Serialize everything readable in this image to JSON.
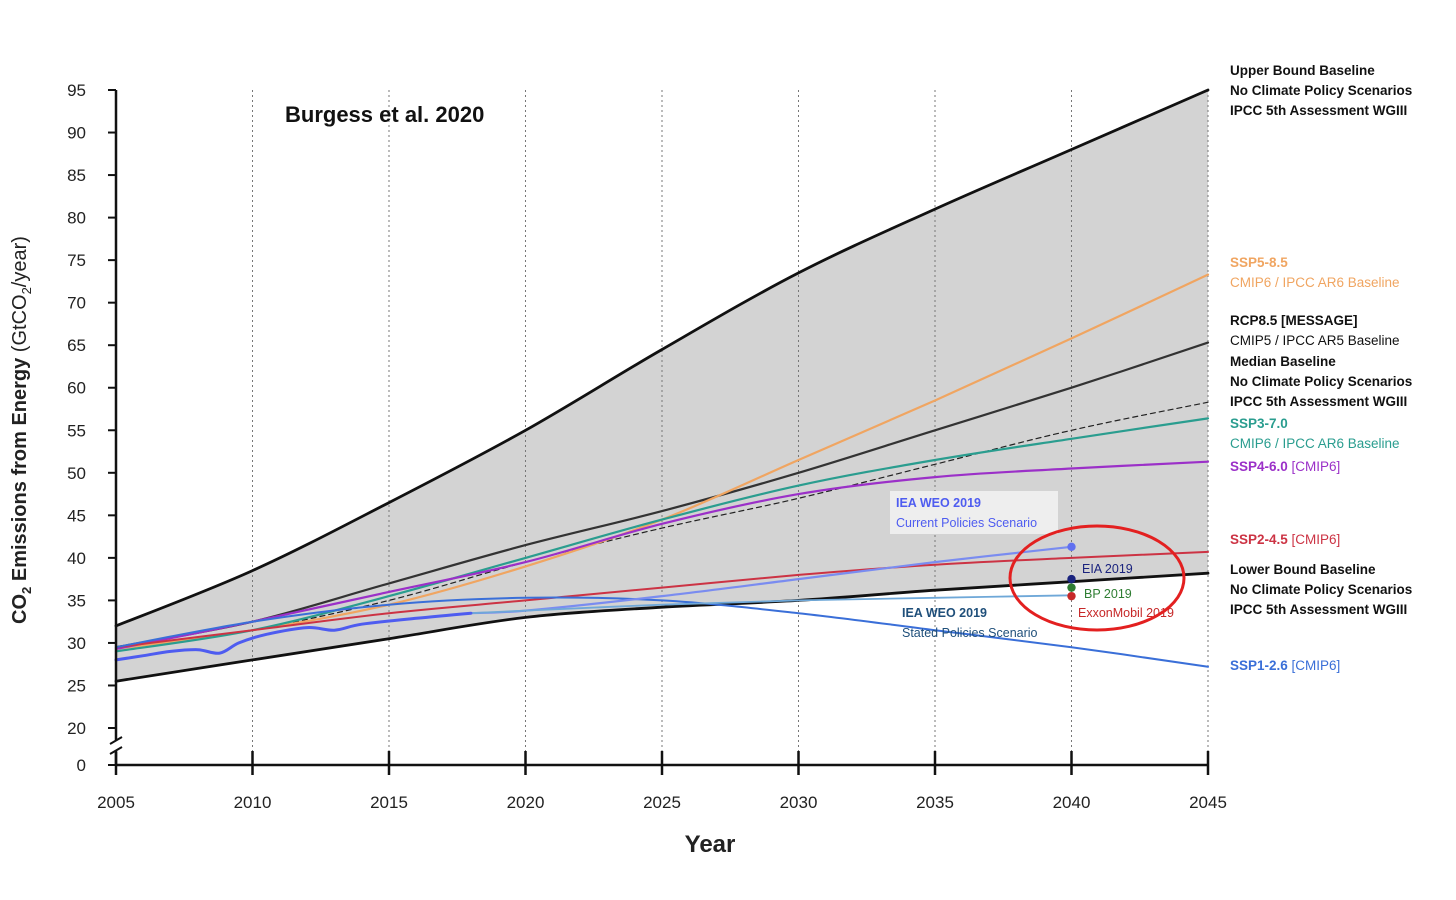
{
  "chart_data": {
    "type": "line",
    "title": "Burgess et al. 2020",
    "xlabel": "Year",
    "ylabel": {
      "pre": "CO",
      "sub1": "2",
      "mid": " Emissions from Energy ",
      "paren_pre": "(GtCO",
      "sub2": "2",
      "paren_post": "/year)"
    },
    "xlim": [
      2005,
      2045
    ],
    "ylim": [
      20,
      95
    ],
    "axis_break_zero_label": "0",
    "grid": "vertical dotted",
    "x_ticks": [
      2005,
      2010,
      2015,
      2020,
      2025,
      2030,
      2035,
      2040,
      2045
    ],
    "y_ticks": [
      20,
      25,
      30,
      35,
      40,
      45,
      50,
      55,
      60,
      65,
      70,
      75,
      80,
      85,
      90,
      95
    ],
    "band": {
      "name": "No Climate Policy Scenarios range",
      "color": "#d3d3d3",
      "upper": {
        "x": [
          2005,
          2010,
          2015,
          2020,
          2025,
          2030,
          2035,
          2040,
          2045
        ],
        "y": [
          32.0,
          38.5,
          46.5,
          55.0,
          64.5,
          73.5,
          81.0,
          88.0,
          95.0
        ]
      },
      "lower": {
        "x": [
          2005,
          2010,
          2015,
          2020,
          2025,
          2030,
          2035,
          2040,
          2045
        ],
        "y": [
          25.5,
          28.0,
          30.5,
          33.0,
          34.2,
          35.0,
          36.2,
          37.2,
          38.2
        ]
      }
    },
    "series": [
      {
        "name": "Upper Bound Baseline",
        "color": "#111111",
        "width": 2.8,
        "dash": "",
        "x": [
          2005,
          2010,
          2015,
          2020,
          2025,
          2030,
          2035,
          2040,
          2045
        ],
        "y": [
          32.0,
          38.5,
          46.5,
          55.0,
          64.5,
          73.5,
          81.0,
          88.0,
          95.0
        ]
      },
      {
        "name": "Lower Bound Baseline",
        "color": "#111111",
        "width": 2.8,
        "dash": "",
        "x": [
          2005,
          2010,
          2015,
          2020,
          2025,
          2030,
          2035,
          2040,
          2045
        ],
        "y": [
          25.5,
          28.0,
          30.5,
          33.0,
          34.2,
          35.0,
          36.2,
          37.2,
          38.2
        ]
      },
      {
        "name": "RCP8.5 [MESSAGE]",
        "color": "#333333",
        "width": 2.2,
        "dash": "",
        "x": [
          2005,
          2010,
          2015,
          2020,
          2025,
          2030,
          2035,
          2040,
          2045
        ],
        "y": [
          29.5,
          32.5,
          37.0,
          41.5,
          45.5,
          50.0,
          55.0,
          60.0,
          65.3
        ]
      },
      {
        "name": "Median Baseline",
        "color": "#222222",
        "width": 1.2,
        "dash": "5,4",
        "x": [
          2005,
          2010,
          2015,
          2020,
          2025,
          2030,
          2035,
          2040,
          2045
        ],
        "y": [
          29.0,
          31.5,
          35.0,
          39.5,
          43.5,
          47.0,
          51.0,
          55.0,
          58.3
        ]
      },
      {
        "name": "SSP5-8.5",
        "color": "#f0a561",
        "width": 2.2,
        "dash": "",
        "x": [
          2005,
          2010,
          2015,
          2020,
          2025,
          2030,
          2035,
          2040,
          2045
        ],
        "y": [
          29.3,
          31.5,
          34.5,
          39.0,
          44.5,
          51.5,
          58.5,
          65.8,
          73.3
        ]
      },
      {
        "name": "SSP3-7.0",
        "color": "#2a9d8f",
        "width": 2.2,
        "dash": "",
        "x": [
          2005,
          2010,
          2015,
          2020,
          2025,
          2030,
          2035,
          2040,
          2045
        ],
        "y": [
          29.0,
          31.5,
          35.5,
          40.0,
          44.5,
          48.5,
          51.5,
          54.0,
          56.4
        ]
      },
      {
        "name": "SSP4-6.0",
        "color": "#9b30c8",
        "width": 2.2,
        "dash": "",
        "x": [
          2005,
          2010,
          2015,
          2020,
          2025,
          2030,
          2035,
          2040,
          2045
        ],
        "y": [
          29.3,
          32.5,
          36.0,
          39.5,
          44.0,
          47.5,
          49.5,
          50.5,
          51.3
        ]
      },
      {
        "name": "SSP2-4.5",
        "color": "#cc3344",
        "width": 2.0,
        "dash": "",
        "x": [
          2005,
          2010,
          2015,
          2020,
          2025,
          2030,
          2035,
          2040,
          2045
        ],
        "y": [
          29.5,
          31.5,
          33.5,
          35.0,
          36.5,
          38.0,
          39.2,
          40.0,
          40.7
        ]
      },
      {
        "name": "SSP1-2.6",
        "color": "#3a6fd8",
        "width": 2.0,
        "dash": "",
        "x": [
          2005,
          2010,
          2015,
          2020,
          2025,
          2030,
          2035,
          2040,
          2045
        ],
        "y": [
          29.5,
          32.5,
          34.5,
          35.3,
          35.0,
          33.5,
          31.5,
          29.5,
          27.2
        ]
      },
      {
        "name": "IEA WEO 2019 Current Policies Scenario",
        "color": "#7a8cf0",
        "width": 2.2,
        "dash": "",
        "x": [
          2018,
          2020,
          2025,
          2030,
          2035,
          2040
        ],
        "y": [
          33.5,
          33.8,
          35.5,
          37.5,
          39.5,
          41.3
        ]
      },
      {
        "name": "IEA WEO 2019 Stated Policies Scenario",
        "color": "#6fa8d8",
        "width": 1.8,
        "dash": "",
        "x": [
          2018,
          2020,
          2025,
          2030,
          2035,
          2040
        ],
        "y": [
          33.5,
          33.8,
          34.5,
          35.0,
          35.3,
          35.6
        ]
      },
      {
        "name": "Historical",
        "color": "#4e5cf0",
        "width": 3.0,
        "dash": "",
        "x": [
          2005,
          2006,
          2007,
          2008,
          2008.8,
          2009.5,
          2010.5,
          2012,
          2013,
          2014,
          2016,
          2018
        ],
        "y": [
          28.0,
          28.5,
          29.0,
          29.2,
          28.8,
          30.0,
          31.0,
          31.8,
          31.5,
          32.2,
          32.9,
          33.5
        ]
      }
    ],
    "points": [
      {
        "name": "IEA WEO 2019 Current Policies 2040",
        "x": 2040,
        "y": 41.3,
        "color": "#6070f0"
      },
      {
        "name": "EIA 2019",
        "x": 2040,
        "y": 37.5,
        "color": "#1a237e"
      },
      {
        "name": "BP 2019",
        "x": 2040,
        "y": 36.5,
        "color": "#2e7d32"
      },
      {
        "name": "ExxonMobil 2019",
        "x": 2040,
        "y": 35.5,
        "color": "#c62828"
      }
    ],
    "annotations": [
      {
        "text": "EIA 2019",
        "color": "#1a237e",
        "bold": false
      },
      {
        "text": "BP 2019",
        "color": "#2e7d32",
        "bold": false
      },
      {
        "text": "ExxonMobil 2019",
        "color": "#c62828",
        "bold": false
      },
      {
        "text": "IEA WEO 2019",
        "color": "#4e5cf0",
        "bold": true
      },
      {
        "text": "Current Policies Scenario",
        "color": "#4e5cf0",
        "bold": false
      },
      {
        "text": "IEA WEO 2019",
        "color": "#1f4f7a",
        "bold": true
      },
      {
        "text": "Stated Policies Scenario",
        "color": "#1f4f7a",
        "bold": false
      }
    ],
    "highlight_circle": {
      "color": "#e32020",
      "around": "EIA 2019 / BP 2019 / ExxonMobil 2019"
    },
    "legend": [
      {
        "lines": [
          {
            "parts": [
              {
                "text": "Upper Bound Baseline",
                "bold": true,
                "color": "#111111"
              }
            ]
          },
          {
            "parts": [
              {
                "text": "No Climate Policy Scenarios",
                "bold": true,
                "color": "#111111"
              }
            ]
          },
          {
            "parts": [
              {
                "text": "IPCC 5th Assessment WGIII",
                "bold": true,
                "color": "#111111"
              }
            ]
          }
        ]
      },
      {
        "lines": [
          {
            "parts": [
              {
                "text": "SSP5-8.5",
                "bold": true,
                "color": "#f0a561"
              }
            ]
          },
          {
            "parts": [
              {
                "text": "CMIP6 / IPCC AR6 Baseline",
                "bold": false,
                "color": "#f0a561"
              }
            ]
          }
        ]
      },
      {
        "lines": [
          {
            "parts": [
              {
                "text": "RCP8.5 [MESSAGE]",
                "bold": true,
                "color": "#111111"
              }
            ]
          },
          {
            "parts": [
              {
                "text": "CMIP5 / IPCC AR5 Baseline",
                "bold": false,
                "color": "#111111"
              }
            ]
          }
        ]
      },
      {
        "lines": [
          {
            "parts": [
              {
                "text": "Median Baseline",
                "bold": true,
                "color": "#111111"
              }
            ]
          },
          {
            "parts": [
              {
                "text": "No Climate Policy Scenarios",
                "bold": true,
                "color": "#111111"
              }
            ]
          },
          {
            "parts": [
              {
                "text": "IPCC 5th Assessment WGIII",
                "bold": true,
                "color": "#111111"
              }
            ]
          }
        ]
      },
      {
        "lines": [
          {
            "parts": [
              {
                "text": "SSP3-7.0",
                "bold": true,
                "color": "#2a9d8f"
              }
            ]
          },
          {
            "parts": [
              {
                "text": "CMIP6 / IPCC AR6 Baseline",
                "bold": false,
                "color": "#2a9d8f"
              }
            ]
          }
        ]
      },
      {
        "lines": [
          {
            "parts": [
              {
                "text": "SSP4-6.0",
                "bold": true,
                "color": "#9b30c8"
              },
              {
                "text": " [CMIP6]",
                "bold": false,
                "color": "#9b30c8"
              }
            ]
          }
        ]
      },
      {
        "lines": [
          {
            "parts": [
              {
                "text": "SSP2-4.5",
                "bold": true,
                "color": "#cc3344"
              },
              {
                "text": " [CMIP6]",
                "bold": false,
                "color": "#cc3344"
              }
            ]
          }
        ]
      },
      {
        "lines": [
          {
            "parts": [
              {
                "text": "Lower Bound Baseline",
                "bold": true,
                "color": "#111111"
              }
            ]
          },
          {
            "parts": [
              {
                "text": "No Climate Policy Scenarios",
                "bold": true,
                "color": "#111111"
              }
            ]
          },
          {
            "parts": [
              {
                "text": "IPCC 5th Assessment WGIII",
                "bold": true,
                "color": "#111111"
              }
            ]
          }
        ]
      },
      {
        "lines": [
          {
            "parts": [
              {
                "text": "SSP1-2.6",
                "bold": true,
                "color": "#3a6fd8"
              },
              {
                "text": " [CMIP6]",
                "bold": false,
                "color": "#3a6fd8"
              }
            ]
          }
        ]
      }
    ]
  }
}
